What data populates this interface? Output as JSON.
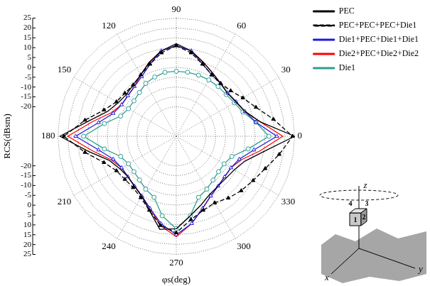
{
  "chart_data": {
    "type": "polar",
    "xlabel": "φs(deg)",
    "ylabel": "RCS(dBsm)",
    "x": [
      90,
      80,
      70,
      60,
      50,
      40,
      30,
      20,
      10,
      0,
      350,
      340,
      330,
      320,
      310,
      300,
      290,
      280,
      270,
      260,
      250,
      240,
      230,
      220,
      210,
      200,
      190,
      180,
      170,
      160,
      150,
      140,
      130,
      120,
      110,
      100
    ],
    "xticks": [
      0,
      30,
      60,
      90,
      120,
      150,
      180,
      210,
      240,
      270,
      300,
      330
    ],
    "ylim": [
      -35,
      25
    ],
    "yticks": [
      -20,
      -15,
      -10,
      -5,
      0,
      5,
      10,
      15,
      20,
      25
    ],
    "grid": true,
    "legend": "right",
    "annotations": [
      "1",
      "2",
      "3",
      "4",
      "x",
      "y",
      "z"
    ],
    "series": [
      {
        "name": "PEC",
        "color": "#000000",
        "marker": "none",
        "line_style": "solid",
        "values": [
          12,
          9,
          5,
          2,
          0,
          -1,
          0,
          2,
          8,
          25,
          10,
          2,
          -1,
          -2,
          -2,
          -1,
          2,
          6,
          12,
          13,
          5,
          0,
          -2,
          -3,
          -2,
          1,
          10,
          24,
          10,
          2,
          -1,
          -2,
          -1,
          1,
          5,
          9
        ]
      },
      {
        "name": "PEC+PEC+PEC+Die1",
        "color": "#000000",
        "marker": "triangle_filled",
        "line_style": "dashed",
        "values": [
          11,
          8,
          4,
          1,
          0,
          1,
          4,
          8,
          15,
          24,
          18,
          13,
          10,
          8,
          6,
          4,
          5,
          8,
          14,
          11,
          5,
          1,
          -1,
          -1,
          0,
          4,
          12,
          22,
          12,
          4,
          0,
          -1,
          -1,
          1,
          4,
          8
        ]
      },
      {
        "name": "Die1+PEC+Die1+Die1",
        "color": "#1a1adc",
        "marker": "triangle",
        "line_style": "solid",
        "values": [
          11,
          9,
          4,
          1,
          0,
          -1,
          0,
          2,
          6,
          16,
          5,
          -1,
          -3,
          -3,
          -2,
          0,
          4,
          10,
          15,
          10,
          4,
          0,
          -2,
          -3,
          -3,
          -1,
          5,
          16,
          5,
          -1,
          -3,
          -3,
          -2,
          0,
          4,
          9
        ]
      },
      {
        "name": "Die2+PEC+Die2+Die2",
        "color": "#ff0000",
        "marker": "none",
        "line_style": "solid",
        "values": [
          11,
          9,
          5,
          2,
          0,
          -1,
          0,
          2,
          8,
          19,
          8,
          0,
          -3,
          -3,
          -2,
          0,
          4,
          10,
          16,
          11,
          4,
          0,
          -2,
          -3,
          -3,
          0,
          8,
          20,
          8,
          0,
          -3,
          -3,
          -2,
          1,
          5,
          9
        ]
      },
      {
        "name": "Die1",
        "color": "#2e9e92",
        "marker": "circle",
        "line_style": "solid",
        "values": [
          -2,
          -2,
          -2,
          -2,
          -2,
          -2,
          -1,
          1,
          6,
          12,
          2,
          -5,
          -7,
          -7,
          -6,
          -4,
          -2,
          6,
          12,
          6,
          -2,
          -4,
          -6,
          -7,
          -7,
          -5,
          2,
          12,
          2,
          -5,
          -7,
          -7,
          -6,
          -4,
          -3,
          -2
        ]
      }
    ]
  }
}
